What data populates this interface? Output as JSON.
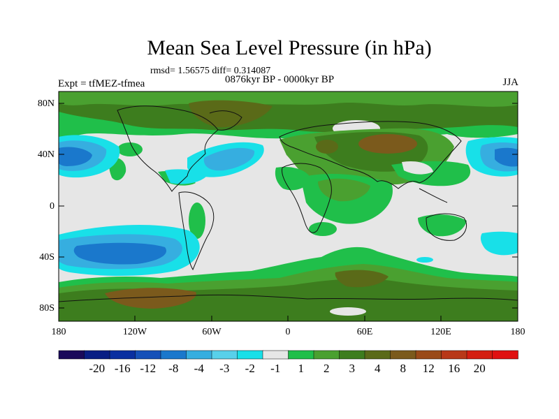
{
  "title": "Mean Sea Level Pressure (in hPa)",
  "stats_text": "rmsd= 1.56575 diff= 0.314087",
  "period_text": "0876kyr BP - 0000kyr BP",
  "experiment_label": "Expt = tfMEZ-tfmea",
  "season_label": "JJA",
  "lat_axis_labels": [
    "80N",
    "40N",
    "0",
    "40S",
    "80S"
  ],
  "lon_axis_labels": [
    "180",
    "120W",
    "60W",
    "0",
    "60E",
    "120E",
    "180"
  ],
  "colorbar": {
    "colors": [
      "#1a0a5a",
      "#081e84",
      "#0a2fa0",
      "#1550b8",
      "#1a78cc",
      "#36aee0",
      "#58d0ea",
      "#18e0e8",
      "#e6e6e6",
      "#20bf4a",
      "#4aa030",
      "#3d7d1e",
      "#5a6a18",
      "#7b5a1c",
      "#9a4a18",
      "#b83818",
      "#d41e10",
      "#e01010"
    ],
    "labels": [
      "-20",
      "-16",
      "-12",
      "-8",
      "-4",
      "-3",
      "-2",
      "-1",
      "1",
      "2",
      "3",
      "4",
      "8",
      "12",
      "16",
      "20"
    ]
  },
  "colors": {
    "neutral": "#e6e6e6",
    "light_green": "#20bf4a",
    "mid_green": "#4aa030",
    "dark_olive": "#3d7d1e",
    "brown": "#7b5a1c",
    "cyan": "#18e0e8",
    "light_blue": "#36aee0",
    "mid_blue": "#1a78cc"
  }
}
